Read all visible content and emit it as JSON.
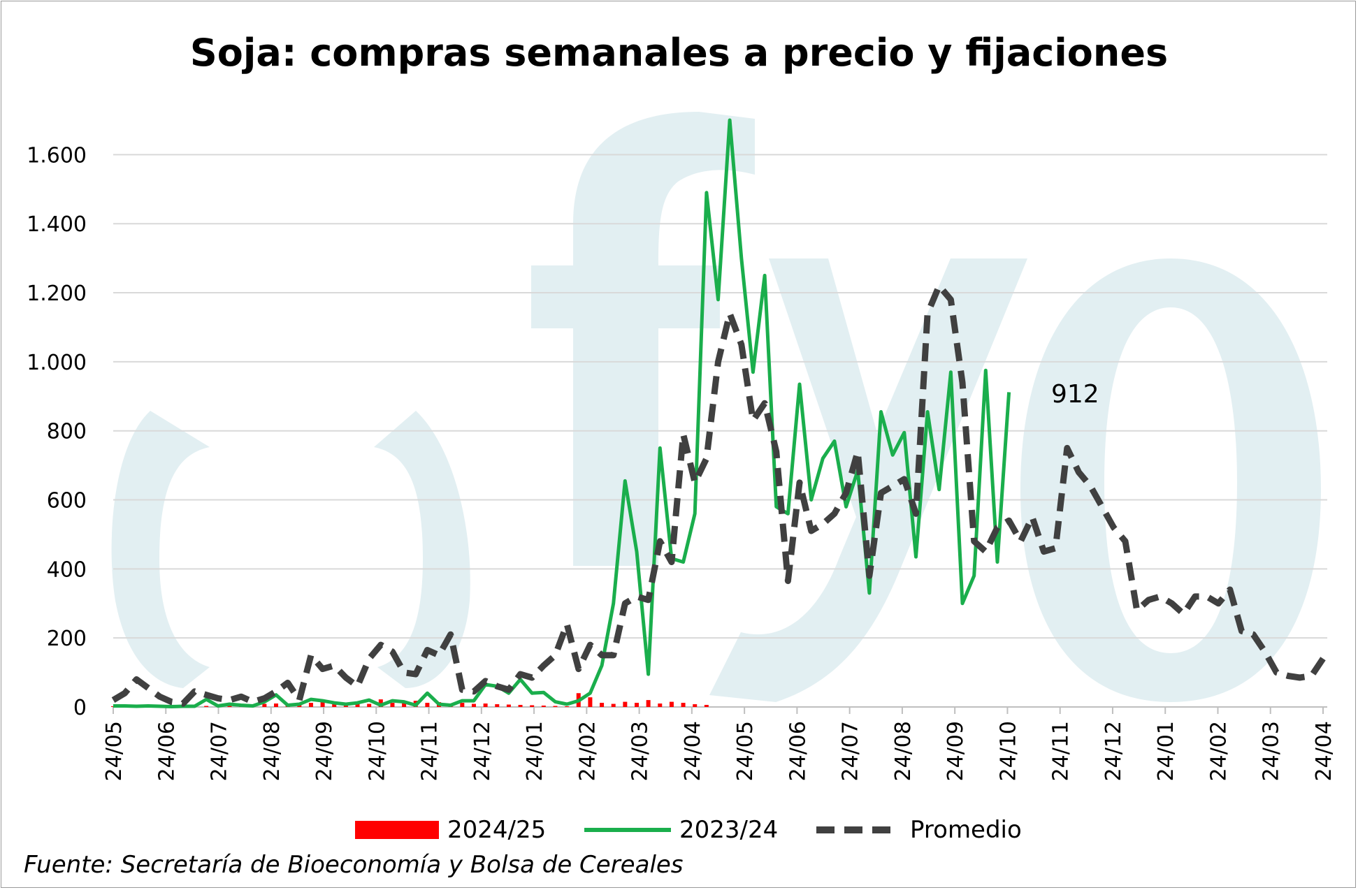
{
  "title": "Soja: compras semanales a precio y fijaciones",
  "source": "Fuente: Secretaría de Bioeconomía y Bolsa de Cereales",
  "annotation": "912",
  "colors": {
    "s2024": "#ff0000",
    "s2023": "#1aae4c",
    "avg": "#404040",
    "grid": "#d9d9d9",
    "watermark": "#e2eff2"
  },
  "watermark": "ofyo",
  "chart_data": {
    "type": "line",
    "title": "Soja: compras semanales a precio y fijaciones",
    "xlabel": "",
    "ylabel": "",
    "ylim": [
      0,
      1700
    ],
    "yticks": [
      0,
      200,
      400,
      600,
      800,
      1000,
      1200,
      1400,
      1600
    ],
    "ytick_labels": [
      "0",
      "200",
      "400",
      "600",
      "800",
      "1.000",
      "1.200",
      "1.400",
      "1.600"
    ],
    "xtick_labels": [
      "24/05",
      "24/06",
      "24/07",
      "24/08",
      "24/09",
      "24/10",
      "24/11",
      "24/12",
      "24/01",
      "24/02",
      "24/03",
      "24/04",
      "24/05",
      "24/06",
      "24/07",
      "24/08",
      "24/09",
      "24/10",
      "24/11",
      "24/12",
      "24/01",
      "24/02",
      "24/03",
      "24/04"
    ],
    "grid": "horizontal",
    "legend_position": "bottom",
    "week_index_note_is_layout": false,
    "series": [
      {
        "name": "2024/25",
        "style": "bar",
        "values": [
          2,
          3,
          2,
          2,
          2,
          3,
          4,
          5,
          3,
          6,
          8,
          5,
          7,
          9,
          10,
          6,
          8,
          12,
          18,
          10,
          12,
          14,
          9,
          22,
          12,
          15,
          18,
          12,
          14,
          10,
          12,
          9,
          10,
          8,
          7,
          6,
          5,
          4,
          3,
          2,
          40,
          28,
          12,
          9,
          15,
          12,
          20,
          10,
          15,
          12,
          8,
          6
        ]
      },
      {
        "name": "2023/24",
        "style": "solid",
        "values": [
          3,
          3,
          2,
          3,
          2,
          1,
          2,
          2,
          22,
          3,
          8,
          5,
          3,
          15,
          35,
          5,
          8,
          22,
          18,
          12,
          8,
          12,
          20,
          5,
          18,
          15,
          5,
          40,
          8,
          5,
          18,
          18,
          65,
          60,
          40,
          80,
          40,
          42,
          15,
          8,
          18,
          40,
          120,
          300,
          655,
          450,
          95,
          750,
          430,
          420,
          560,
          1490,
          1180,
          1700,
          1300,
          970,
          1250,
          580,
          560,
          935,
          600,
          720,
          770,
          580,
          685,
          330,
          855,
          730,
          795,
          435,
          855,
          630,
          970,
          300,
          380,
          975,
          420,
          912
        ]
      },
      {
        "name": "Promedio",
        "style": "dashed",
        "values": [
          20,
          40,
          80,
          55,
          30,
          15,
          10,
          45,
          35,
          25,
          20,
          30,
          15,
          25,
          45,
          70,
          20,
          150,
          110,
          120,
          85,
          60,
          140,
          180,
          160,
          100,
          95,
          165,
          150,
          210,
          50,
          45,
          75,
          60,
          50,
          95,
          85,
          120,
          150,
          240,
          110,
          180,
          150,
          150,
          300,
          320,
          310,
          480,
          420,
          790,
          650,
          720,
          1000,
          1140,
          1050,
          830,
          880,
          740,
          365,
          650,
          510,
          530,
          560,
          620,
          740,
          380,
          620,
          640,
          660,
          560,
          1140,
          1220,
          1180,
          940,
          480,
          450,
          520,
          540,
          480,
          550,
          450,
          460,
          750,
          680,
          640,
          580,
          520,
          480,
          280,
          310,
          320,
          300,
          270,
          320,
          320,
          300,
          340,
          220,
          210,
          160,
          100,
          90,
          85,
          90,
          140
        ]
      }
    ]
  },
  "legend": {
    "s2024": "2024/25",
    "s2023": "2023/24",
    "avg": "Promedio"
  }
}
